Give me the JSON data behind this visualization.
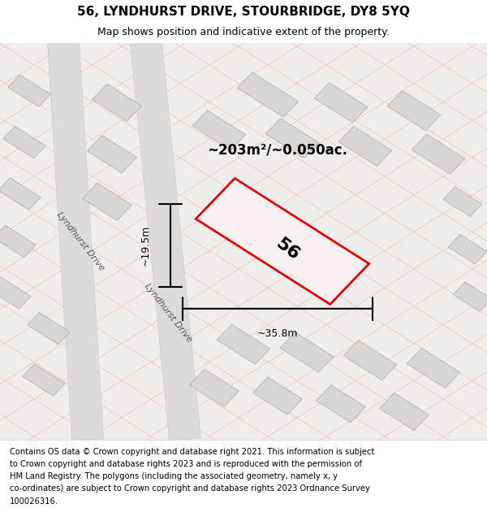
{
  "title": "56, LYNDHURST DRIVE, STOURBRIDGE, DY8 5YQ",
  "subtitle": "Map shows position and indicative extent of the property.",
  "footer": "Contains OS data © Crown copyright and database right 2021. This information is subject to Crown copyright and database rights 2023 and is reproduced with the permission of HM Land Registry. The polygons (including the associated geometry, namely x, y co-ordinates) are subject to Crown copyright and database rights 2023 Ordnance Survey 100026316.",
  "area_label": "~203m²/~0.050ac.",
  "width_label": "~35.8m",
  "height_label": "~19.5m",
  "plot_number": "56",
  "bg_color": "#f0eeee",
  "map_bg": "#f2f0f0",
  "road_color": "#ffffff",
  "building_color": "#d8d5d5",
  "plot_outline_color": "#e00000",
  "grid_line_color": "#f5c0c0",
  "road_line_color": "#cccccc",
  "street_label": "Lyndhurst Drive",
  "title_fontsize": 11,
  "subtitle_fontsize": 9,
  "footer_fontsize": 7.5
}
